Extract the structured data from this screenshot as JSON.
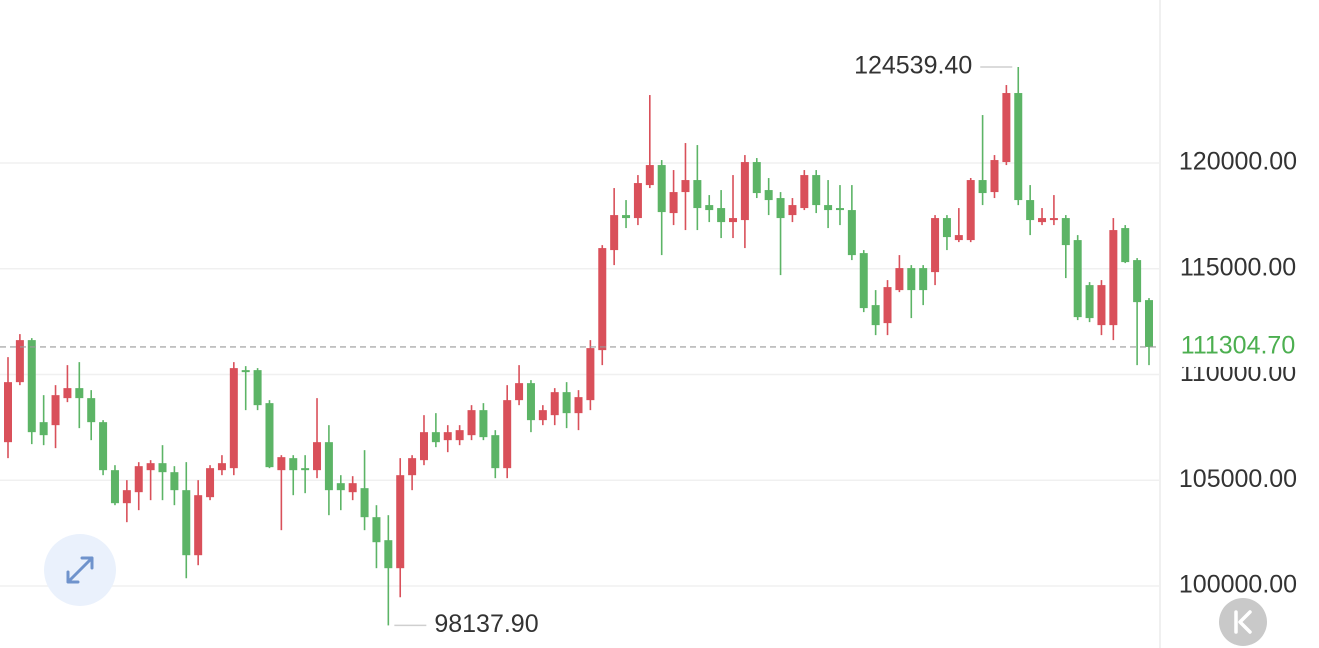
{
  "chart_data": {
    "type": "candlestick",
    "up_color": "#d9505a",
    "down_color": "#5cb466",
    "ylim": [
      97070,
      127710
    ],
    "yticks": [
      {
        "value": 100000,
        "label": "100000.00"
      },
      {
        "value": 105000,
        "label": "105000.00"
      },
      {
        "value": 110000,
        "label": "110000.00"
      },
      {
        "value": 115000,
        "label": "115000.00"
      },
      {
        "value": 120000,
        "label": "120000.00"
      }
    ],
    "grid": true,
    "open": [
      106803,
      109641,
      111628,
      107749,
      107607,
      108885,
      109358,
      108885,
      107749,
      105479,
      103918,
      104438,
      105479,
      105810,
      105384,
      104533,
      101458,
      104202,
      105479,
      105574,
      110209,
      110209,
      108648,
      105479,
      106047,
      105574,
      105479,
      106803,
      104864,
      104438,
      104628,
      103256,
      102168,
      100844,
      105242,
      105952,
      107276,
      106898,
      106898,
      107134,
      108317,
      107134,
      105574,
      108790,
      109594,
      107844,
      108080,
      109168,
      108175,
      108790,
      111155,
      115885,
      117540,
      117399,
      118959,
      119905,
      117635,
      118628,
      119196,
      118013,
      117872,
      117209,
      117304,
      120047,
      118723,
      118345,
      117540,
      117872,
      119432,
      118013,
      117872,
      117777,
      115743,
      113283,
      112432,
      113993,
      115034,
      115034,
      114844,
      117399,
      116358,
      116358,
      119196,
      118628,
      120047,
      123311,
      118250,
      117209,
      117304,
      117399,
      116358,
      114229,
      112337,
      112337,
      116926,
      115412,
      113520
    ],
    "high": [
      110824,
      111912,
      111723,
      109026,
      109499,
      110445,
      110587,
      109263,
      107844,
      105715,
      105006,
      105857,
      105952,
      106661,
      105668,
      105857,
      105006,
      105715,
      106188,
      110587,
      110398,
      110304,
      108790,
      106188,
      106188,
      106188,
      108885,
      107607,
      105242,
      105195,
      106425,
      103823,
      103350,
      106047,
      106188,
      108080,
      108175,
      107607,
      107607,
      108553,
      108648,
      107371,
      109499,
      110445,
      109736,
      108553,
      109358,
      109641,
      109263,
      111628,
      116121,
      118818,
      118250,
      119432,
      123216,
      120142,
      119669,
      120946,
      120851,
      118486,
      118723,
      119432,
      120378,
      120237,
      119291,
      118628,
      118345,
      119669,
      119669,
      119196,
      118959,
      118959,
      115885,
      113993,
      114466,
      115648,
      115175,
      115175,
      117540,
      117540,
      117872,
      119291,
      122270,
      120378,
      123689,
      124539.4,
      118959,
      117872,
      118486,
      117540,
      116594,
      114371,
      114466,
      117399,
      117067,
      115507,
      113615
    ],
    "low": [
      106047,
      109499,
      106709,
      106661,
      106520,
      108695,
      107466,
      106898,
      105242,
      103823,
      103019,
      103587,
      104060,
      104060,
      103823,
      100371,
      100985,
      104060,
      105242,
      105242,
      108317,
      108317,
      105574,
      102641,
      104296,
      104391,
      105101,
      103350,
      103587,
      104060,
      102641,
      100844,
      98137.9,
      99472,
      104533,
      105715,
      106567,
      106330,
      106661,
      106898,
      106898,
      105101,
      105101,
      108553,
      107276,
      107607,
      107607,
      107466,
      107371,
      108317,
      110445,
      115175,
      116926,
      117067,
      118818,
      115648,
      117067,
      116831,
      116831,
      117209,
      116453,
      116453,
      115980,
      118345,
      117540,
      114702,
      117209,
      117777,
      117635,
      116926,
      117067,
      115412,
      112952,
      111864,
      111864,
      113898,
      112669,
      113283,
      114229,
      115885,
      116263,
      116263,
      118013,
      118345,
      119905,
      118013,
      116594,
      117067,
      117067,
      114561,
      112574,
      112479,
      111864,
      111628,
      115270,
      110445,
      110445
    ],
    "close": [
      109641,
      111628,
      107276,
      107134,
      109026,
      109358,
      108885,
      107749,
      105479,
      103918,
      104533,
      105668,
      105810,
      105384,
      104533,
      101458,
      104296,
      105574,
      105810,
      110304,
      110114,
      108553,
      105621,
      106094,
      105479,
      105479,
      106803,
      104533,
      104533,
      104864,
      103256,
      102073,
      100844,
      105242,
      106047,
      107276,
      106803,
      107276,
      107371,
      108317,
      107040,
      105574,
      108790,
      109594,
      107844,
      108317,
      109168,
      108175,
      108932,
      111250,
      115980,
      117540,
      117399,
      119054,
      119905,
      117682,
      118628,
      119196,
      117872,
      117777,
      117209,
      117399,
      120047,
      118581,
      118250,
      117399,
      118013,
      119432,
      118013,
      117777,
      117777,
      115648,
      113142,
      112337,
      114135,
      115034,
      113993,
      113993,
      117399,
      116500,
      116594,
      119196,
      118581,
      120142,
      123311,
      118250,
      117304,
      117399,
      117399,
      116121,
      112716,
      112669,
      114229,
      116831,
      115317,
      113425,
      111304.7
    ],
    "annotations": [
      {
        "value": 124539.4,
        "label": "124539.40"
      },
      {
        "value": 98137.9,
        "label": "98137.90"
      }
    ],
    "last_price": {
      "value": 111304.7,
      "label": "111304.70",
      "color": "#4caf50"
    }
  }
}
